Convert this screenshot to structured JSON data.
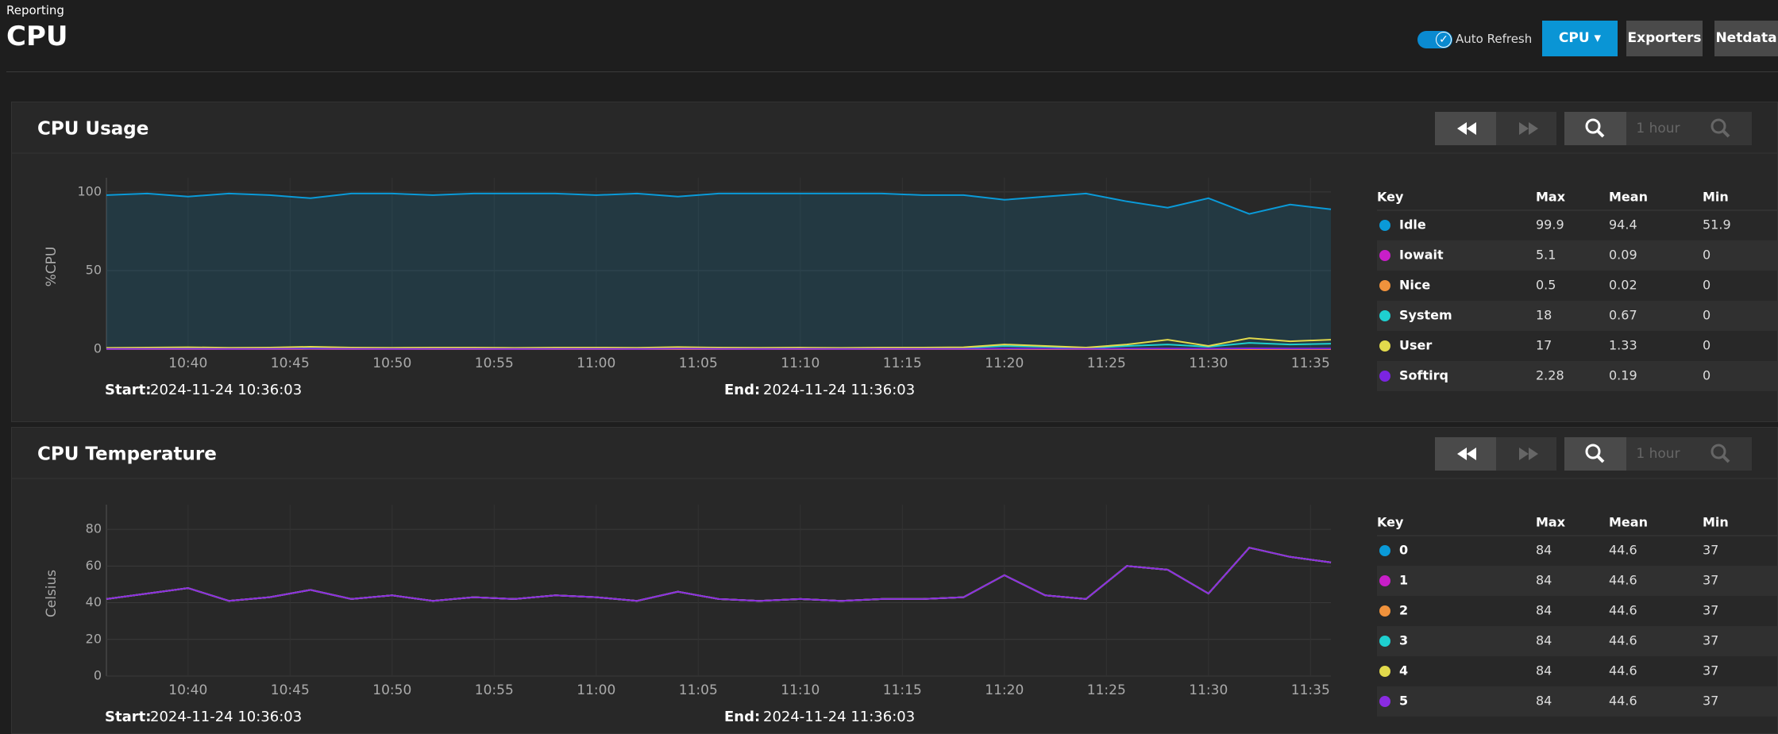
{
  "page": {
    "breadcrumb": "Reporting",
    "title": "CPU",
    "auto_refresh": "Auto Refresh",
    "buttons": [
      "CPU",
      "Exporters",
      "Netdata"
    ]
  },
  "controls": {
    "range": "1 hour"
  },
  "chart_data": [
    {
      "type": "line",
      "title": "CPU Usage",
      "ylabel": "%CPU",
      "x": [
        "10:36",
        "10:38",
        "10:40",
        "10:42",
        "10:44",
        "10:46",
        "10:48",
        "10:50",
        "10:52",
        "10:54",
        "10:56",
        "10:58",
        "11:00",
        "11:02",
        "11:04",
        "11:06",
        "11:08",
        "11:10",
        "11:12",
        "11:14",
        "11:16",
        "11:18",
        "11:20",
        "11:22",
        "11:24",
        "11:26",
        "11:28",
        "11:30",
        "11:32",
        "11:34",
        "11:36"
      ],
      "xlim": [
        "10:36",
        "11:36"
      ],
      "xticks": [
        "10:40",
        "10:45",
        "10:50",
        "10:55",
        "11:00",
        "11:05",
        "11:10",
        "11:15",
        "11:20",
        "11:25",
        "11:30",
        "11:35"
      ],
      "ylim": [
        0,
        105
      ],
      "yticks": [
        0,
        50,
        100
      ],
      "grid": true,
      "legend_columns": [
        "Key",
        "Max",
        "Mean",
        "Min"
      ],
      "series": [
        {
          "name": "Idle",
          "color": "#0a9ad8",
          "area": true,
          "max": 99.9,
          "mean": 94.4,
          "min": 51.9,
          "values": [
            98,
            99,
            97,
            99,
            98,
            96,
            99,
            99,
            98,
            99,
            99,
            99,
            98,
            99,
            97,
            99,
            99,
            99,
            99,
            99,
            98,
            98,
            95,
            97,
            99,
            94,
            90,
            96,
            86,
            92,
            89
          ]
        },
        {
          "name": "Iowait",
          "color": "#c81ec8",
          "max": 5.1,
          "mean": 0.09,
          "min": 0,
          "values": [
            0.05,
            0.1,
            0.05,
            0.1,
            0.05,
            0.2,
            0.05,
            0.1,
            0.05,
            0.1,
            0.05,
            0.1,
            0.05,
            0.1,
            0.2,
            0.05,
            0.1,
            0.05,
            0.1,
            0.05,
            0.1,
            0.05,
            0.2,
            0.1,
            0.05,
            0.1,
            0.2,
            0.1,
            0.2,
            0.1,
            0.1
          ]
        },
        {
          "name": "Nice",
          "color": "#f0923c",
          "max": 0.5,
          "mean": 0.02,
          "min": 0,
          "values": [
            0,
            0,
            0,
            0,
            0,
            0.1,
            0,
            0,
            0,
            0,
            0,
            0,
            0,
            0,
            0,
            0,
            0,
            0,
            0,
            0,
            0,
            0,
            0.1,
            0,
            0,
            0,
            0,
            0,
            0,
            0,
            0
          ]
        },
        {
          "name": "System",
          "color": "#1ecfcf",
          "max": 18,
          "mean": 0.67,
          "min": 0,
          "values": [
            0.6,
            0.7,
            0.8,
            0.6,
            0.7,
            1,
            0.7,
            0.6,
            0.7,
            0.6,
            0.6,
            0.7,
            0.6,
            0.6,
            0.9,
            0.6,
            0.6,
            0.6,
            0.6,
            0.6,
            0.7,
            0.8,
            2,
            1.5,
            0.7,
            2,
            3,
            1.5,
            4,
            3,
            3.5
          ]
        },
        {
          "name": "User",
          "color": "#e2da4c",
          "max": 17,
          "mean": 1.33,
          "min": 0,
          "values": [
            0.8,
            1,
            1.2,
            0.9,
            1,
            1.5,
            1,
            0.9,
            1,
            1,
            0.8,
            1,
            1,
            0.9,
            1.3,
            1,
            0.9,
            1,
            0.8,
            1,
            1,
            1.2,
            3,
            2,
            1,
            3,
            6,
            2,
            7,
            5,
            6
          ]
        },
        {
          "name": "Softirq",
          "color": "#7b24e0",
          "max": 2.28,
          "mean": 0.19,
          "min": 0,
          "values": [
            0.1,
            0.2,
            0.2,
            0.1,
            0.2,
            0.3,
            0.2,
            0.1,
            0.2,
            0.2,
            0.1,
            0.2,
            0.2,
            0.1,
            0.3,
            0.2,
            0.1,
            0.2,
            0.1,
            0.2,
            0.2,
            0.2,
            0.4,
            0.3,
            0.2,
            0.3,
            0.4,
            0.3,
            0.5,
            0.4,
            0.4
          ]
        }
      ],
      "start_label": "Start:",
      "start": "2024-11-24 10:36:03",
      "end_label": "End:",
      "end": "2024-11-24 11:36:03"
    },
    {
      "type": "line",
      "title": "CPU Temperature",
      "ylabel": "Celsius",
      "x": [
        "10:36",
        "10:38",
        "10:40",
        "10:42",
        "10:44",
        "10:46",
        "10:48",
        "10:50",
        "10:52",
        "10:54",
        "10:56",
        "10:58",
        "11:00",
        "11:02",
        "11:04",
        "11:06",
        "11:08",
        "11:10",
        "11:12",
        "11:14",
        "11:16",
        "11:18",
        "11:20",
        "11:22",
        "11:24",
        "11:26",
        "11:28",
        "11:30",
        "11:32",
        "11:34",
        "11:36"
      ],
      "xlim": [
        "10:36",
        "11:36"
      ],
      "xticks": [
        "10:40",
        "10:45",
        "10:50",
        "10:55",
        "11:00",
        "11:05",
        "11:10",
        "11:15",
        "11:20",
        "11:25",
        "11:30",
        "11:35"
      ],
      "ylim": [
        0,
        90
      ],
      "yticks": [
        0,
        20,
        40,
        60,
        80
      ],
      "grid": true,
      "legend_columns": [
        "Key",
        "Max",
        "Mean",
        "Min"
      ],
      "series": [
        {
          "name": "0",
          "color": "#0a9ad8",
          "max": 84,
          "mean": 44.6,
          "min": 37,
          "values": [
            42,
            45,
            48,
            41,
            43,
            47,
            42,
            44,
            41,
            43,
            42,
            44,
            43,
            41,
            46,
            42,
            41,
            42,
            41,
            42,
            42,
            43,
            55,
            44,
            42,
            60,
            58,
            45,
            70,
            65,
            62
          ]
        },
        {
          "name": "1",
          "color": "#c81ec8",
          "max": 84,
          "mean": 44.6,
          "min": 37,
          "values": [
            42,
            45,
            48,
            41,
            43,
            47,
            42,
            44,
            41,
            43,
            42,
            44,
            43,
            41,
            46,
            42,
            41,
            42,
            41,
            42,
            42,
            43,
            55,
            44,
            42,
            60,
            58,
            45,
            70,
            65,
            62
          ]
        },
        {
          "name": "2",
          "color": "#f0923c",
          "max": 84,
          "mean": 44.6,
          "min": 37,
          "values": [
            42,
            45,
            48,
            41,
            43,
            47,
            42,
            44,
            41,
            43,
            42,
            44,
            43,
            41,
            46,
            42,
            41,
            42,
            41,
            42,
            42,
            43,
            55,
            44,
            42,
            60,
            58,
            45,
            70,
            65,
            62
          ]
        },
        {
          "name": "3",
          "color": "#1ecfcf",
          "max": 84,
          "mean": 44.6,
          "min": 37,
          "values": [
            42,
            45,
            48,
            41,
            43,
            47,
            42,
            44,
            41,
            43,
            42,
            44,
            43,
            41,
            46,
            42,
            41,
            42,
            41,
            42,
            42,
            43,
            55,
            44,
            42,
            60,
            58,
            45,
            70,
            65,
            62
          ]
        },
        {
          "name": "4",
          "color": "#e2da4c",
          "max": 84,
          "mean": 44.6,
          "min": 37,
          "values": [
            42,
            45,
            48,
            41,
            43,
            47,
            42,
            44,
            41,
            43,
            42,
            44,
            43,
            41,
            46,
            42,
            41,
            42,
            41,
            42,
            42,
            43,
            55,
            44,
            42,
            60,
            58,
            45,
            70,
            65,
            62
          ]
        },
        {
          "name": "5",
          "color": "#8a2be2",
          "max": 84,
          "mean": 44.6,
          "min": 37,
          "values": [
            42,
            45,
            48,
            41,
            43,
            47,
            42,
            44,
            41,
            43,
            42,
            44,
            43,
            41,
            46,
            42,
            41,
            42,
            41,
            42,
            42,
            43,
            55,
            44,
            42,
            60,
            58,
            45,
            70,
            65,
            62
          ]
        }
      ],
      "start_label": "Start:",
      "start": "2024-11-24 10:36:03",
      "end_label": "End:",
      "end": "2024-11-24 11:36:03"
    }
  ]
}
